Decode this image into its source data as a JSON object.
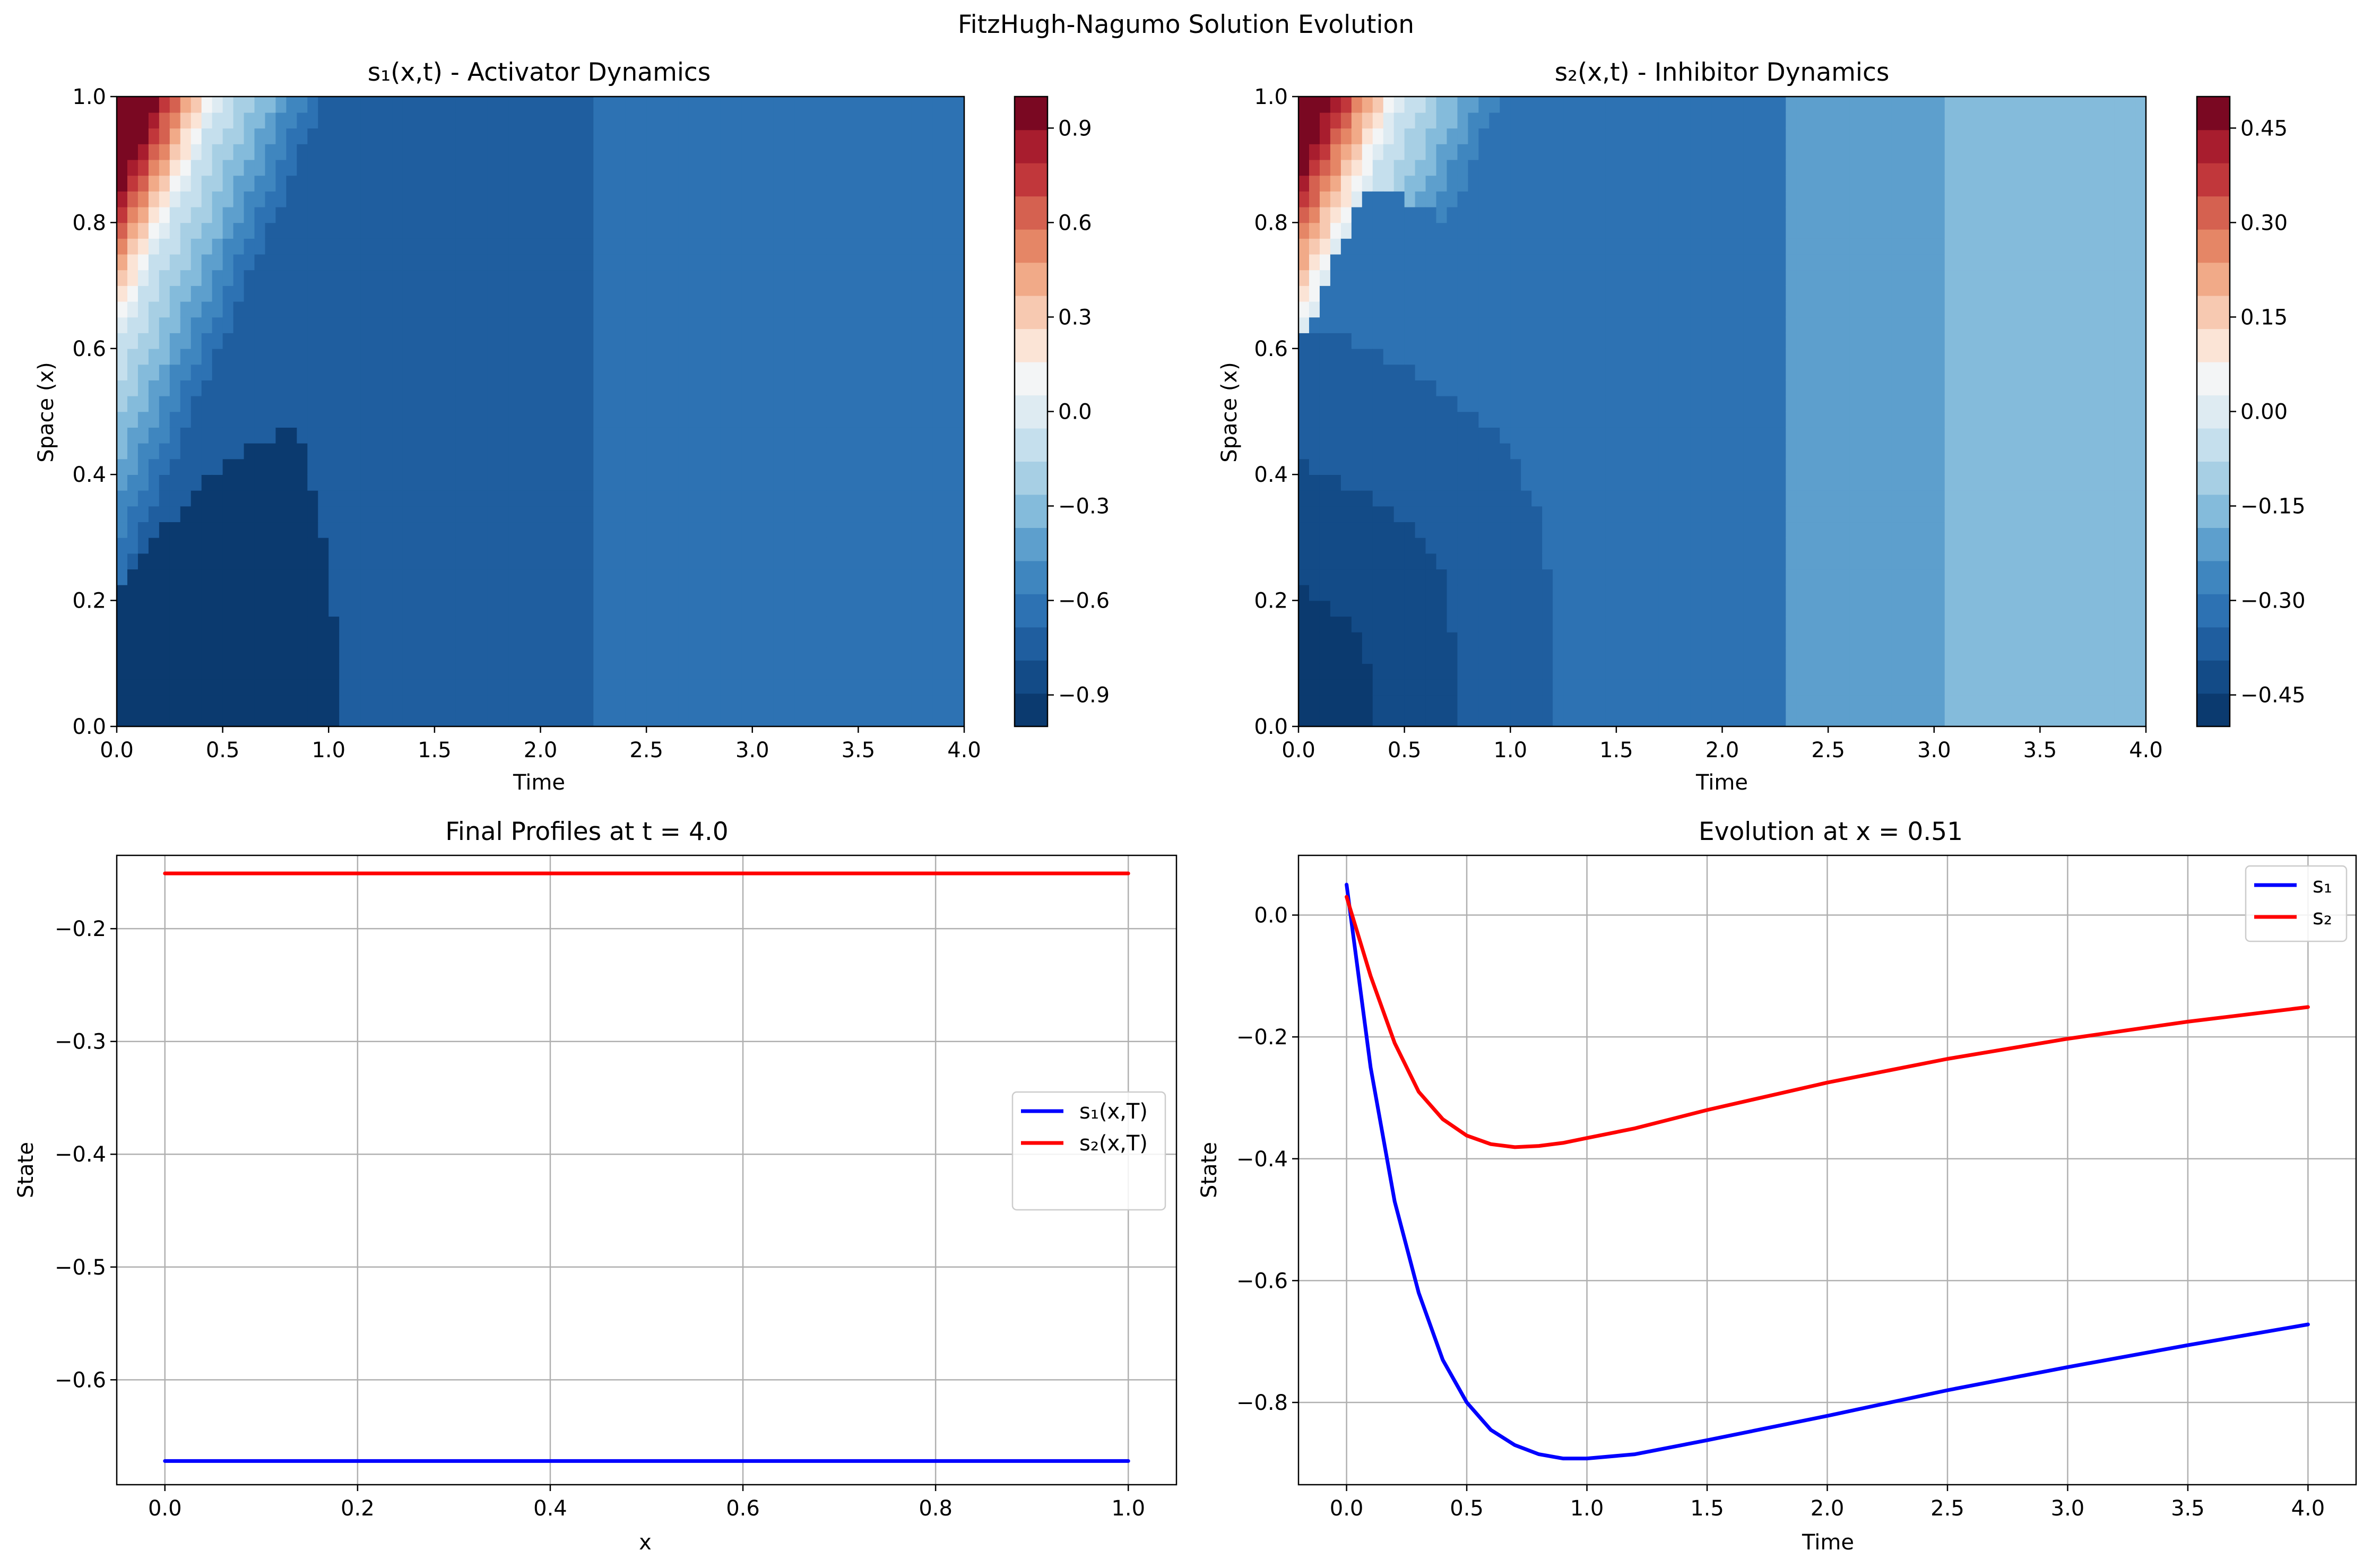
{
  "suptitle": "FitzHugh-Nagumo Solution Evolution",
  "colors": {
    "blue": "#0000ff",
    "red": "#ff0000",
    "grid": "#b0b0b0",
    "axis": "#000000"
  },
  "colormap": {
    "name": "RdBu_r",
    "stops": [
      "#0b3a6f",
      "#134b87",
      "#1f5e9f",
      "#2d72b3",
      "#3f86bf",
      "#5d9fcd",
      "#84bbdb",
      "#a7cfe4",
      "#c5dfed",
      "#deebf2",
      "#f3f5f6",
      "#fbe4d6",
      "#f7c9b1",
      "#f1aa88",
      "#e58666",
      "#d56150",
      "#c1373b",
      "#a81d2e",
      "#7a0822"
    ]
  },
  "chart_data": [
    {
      "type": "heatmap",
      "title": "s₁(x,t) - Activator Dynamics",
      "xlabel": "Time",
      "ylabel": "Space (x)",
      "xlim": [
        0,
        4
      ],
      "ylim": [
        0,
        1
      ],
      "xticks": [
        "0.0",
        "0.5",
        "1.0",
        "1.5",
        "2.0",
        "2.5",
        "3.0",
        "3.5",
        "4.0"
      ],
      "yticks": [
        "0.0",
        "0.2",
        "0.4",
        "0.6",
        "0.8",
        "1.0"
      ],
      "colorbar": {
        "min": -1.0,
        "max": 1.0,
        "ticks": [
          -0.9,
          -0.6,
          -0.3,
          0.0,
          0.3,
          0.6,
          0.9
        ],
        "tick_labels": [
          "−0.9",
          "−0.6",
          "−0.3",
          "0.0",
          "0.3",
          "0.6",
          "0.9"
        ]
      },
      "field": "activator"
    },
    {
      "type": "heatmap",
      "title": "s₂(x,t) - Inhibitor Dynamics",
      "xlabel": "Time",
      "ylabel": "Space (x)",
      "xlim": [
        0,
        4
      ],
      "ylim": [
        0,
        1
      ],
      "xticks": [
        "0.0",
        "0.5",
        "1.0",
        "1.5",
        "2.0",
        "2.5",
        "3.0",
        "3.5",
        "4.0"
      ],
      "yticks": [
        "0.0",
        "0.2",
        "0.4",
        "0.6",
        "0.8",
        "1.0"
      ],
      "colorbar": {
        "min": -0.5,
        "max": 0.5,
        "ticks": [
          -0.45,
          -0.3,
          -0.15,
          0.0,
          0.15,
          0.3,
          0.45
        ],
        "tick_labels": [
          "−0.45",
          "−0.30",
          "−0.15",
          "0.00",
          "0.15",
          "0.30",
          "0.45"
        ]
      },
      "field": "inhibitor"
    },
    {
      "type": "line",
      "title": "Final Profiles at t = 4.0",
      "xlabel": "x",
      "ylabel": "State",
      "xlim": [
        -0.05,
        1.05
      ],
      "ylim": [
        -0.693,
        -0.135
      ],
      "xticks": [
        0,
        0.2,
        0.4,
        0.6,
        0.8,
        1.0
      ],
      "xtick_labels": [
        "0.0",
        "0.2",
        "0.4",
        "0.6",
        "0.8",
        "1.0"
      ],
      "yticks": [
        -0.6,
        -0.5,
        -0.4,
        -0.3,
        -0.2
      ],
      "ytick_labels": [
        "−0.6",
        "−0.5",
        "−0.4",
        "−0.3",
        "−0.2"
      ],
      "grid": true,
      "legend_position": "center-right",
      "series": [
        {
          "name": "s₁(x,T)",
          "color": "#0000ff",
          "x": [
            0,
            1.0
          ],
          "y": [
            -0.672,
            -0.672
          ]
        },
        {
          "name": "s₂(x,T)",
          "color": "#ff0000",
          "x": [
            0,
            1.0
          ],
          "y": [
            -0.151,
            -0.151
          ]
        }
      ]
    },
    {
      "type": "line",
      "title": "Evolution at x = 0.51",
      "xlabel": "Time",
      "ylabel": "State",
      "xlim": [
        -0.2,
        4.2
      ],
      "ylim": [
        -0.935,
        0.098
      ],
      "xticks": [
        0,
        0.5,
        1.0,
        1.5,
        2.0,
        2.5,
        3.0,
        3.5,
        4.0
      ],
      "xtick_labels": [
        "0.0",
        "0.5",
        "1.0",
        "1.5",
        "2.0",
        "2.5",
        "3.0",
        "3.5",
        "4.0"
      ],
      "yticks": [
        0.0,
        -0.2,
        -0.4,
        -0.6,
        -0.8
      ],
      "ytick_labels": [
        "0.0",
        "−0.2",
        "−0.4",
        "−0.6",
        "−0.8"
      ],
      "grid": true,
      "legend_position": "top-right",
      "series": [
        {
          "name": "s₁",
          "color": "#0000ff",
          "x": [
            0,
            0.1,
            0.2,
            0.3,
            0.4,
            0.5,
            0.6,
            0.7,
            0.8,
            0.9,
            1.0,
            1.2,
            1.5,
            2.0,
            2.5,
            3.0,
            3.5,
            4.0
          ],
          "y": [
            0.05,
            -0.25,
            -0.47,
            -0.62,
            -0.73,
            -0.8,
            -0.845,
            -0.87,
            -0.885,
            -0.892,
            -0.892,
            -0.885,
            -0.862,
            -0.822,
            -0.78,
            -0.742,
            -0.706,
            -0.672
          ]
        },
        {
          "name": "s₂",
          "color": "#ff0000",
          "x": [
            0,
            0.1,
            0.2,
            0.3,
            0.4,
            0.5,
            0.6,
            0.7,
            0.8,
            0.9,
            1.0,
            1.2,
            1.5,
            2.0,
            2.5,
            3.0,
            3.5,
            4.0
          ],
          "y": [
            0.03,
            -0.1,
            -0.21,
            -0.29,
            -0.335,
            -0.362,
            -0.376,
            -0.381,
            -0.379,
            -0.374,
            -0.366,
            -0.35,
            -0.32,
            -0.275,
            -0.236,
            -0.203,
            -0.175,
            -0.151
          ]
        }
      ]
    }
  ]
}
